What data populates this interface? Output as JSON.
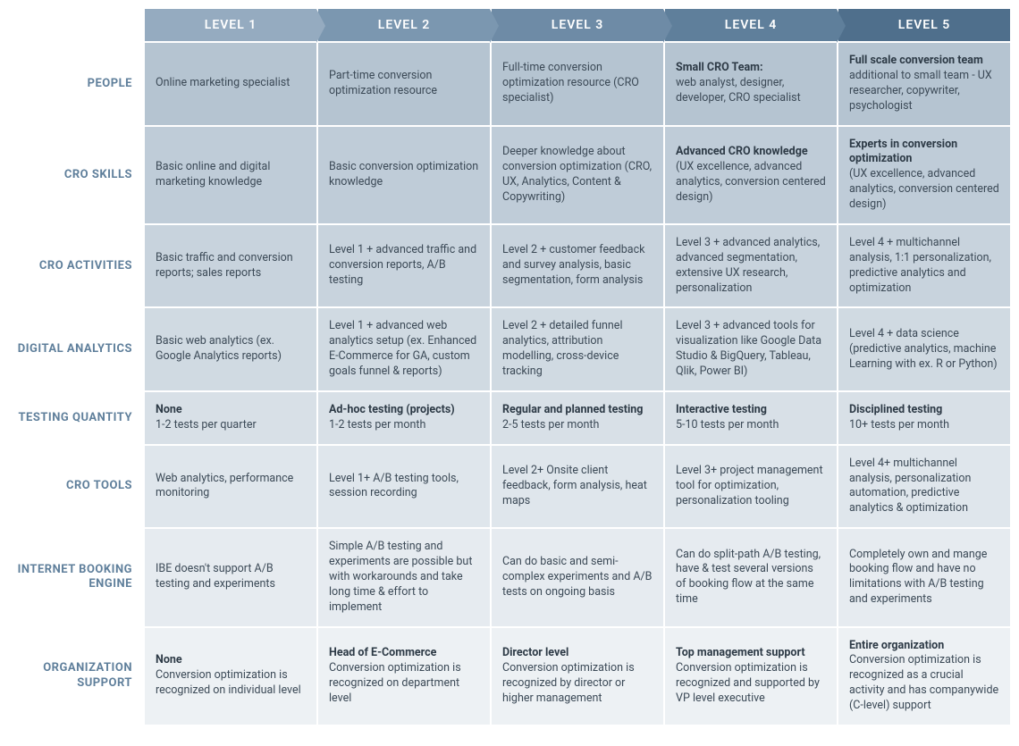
{
  "columns": [
    "LEVEL 1",
    "LEVEL 2",
    "LEVEL 3",
    "LEVEL 4",
    "LEVEL 5"
  ],
  "header_colors": [
    "#95abc0",
    "#7b97b0",
    "#6e8ba6",
    "#5f7f9b",
    "#4f6f8c"
  ],
  "row_bg_colors": [
    "#b5c4d1",
    "#bfccd8",
    "#c8d3dd",
    "#d0dae2",
    "#d8e0e7",
    "#dfe6ec",
    "#e6ebf0",
    "#edf1f4"
  ],
  "label_color": "#5f7f9b",
  "text_color": "#3c4a57",
  "bold_color": "#2d3a46",
  "font_size_header": 14,
  "font_size_label": 13,
  "font_size_cell": 12.5,
  "rows": [
    {
      "label": "PEOPLE",
      "cells": [
        {
          "bold": "",
          "text": "Online marketing specialist"
        },
        {
          "bold": "",
          "text": "Part-time conversion optimization resource"
        },
        {
          "bold": "",
          "text": "Full-time conversion optimization resource (CRO specialist)"
        },
        {
          "bold": "Small CRO Team:",
          "text": "web analyst, designer, developer, CRO specialist"
        },
        {
          "bold": "Full scale conversion team",
          "text": "additional to small team - UX researcher, copywriter, psychologist"
        }
      ]
    },
    {
      "label": "CRO SKILLS",
      "cells": [
        {
          "bold": "",
          "text": "Basic online and digital marketing knowledge"
        },
        {
          "bold": "",
          "text": "Basic conversion optimization knowledge"
        },
        {
          "bold": "",
          "text": "Deeper knowledge about conversion optimization (CRO, UX, Analytics, Content & Copywriting)"
        },
        {
          "bold": "Advanced CRO knowledge",
          "text": "(UX excellence, advanced analytics, conversion centered design)"
        },
        {
          "bold": "Experts in conversion optimization",
          "text": "(UX excellence, advanced analytics, conversion centered design)"
        }
      ]
    },
    {
      "label": "CRO ACTIVITIES",
      "cells": [
        {
          "bold": "",
          "text": "Basic traffic and conversion reports; sales reports"
        },
        {
          "bold": "",
          "text": "Level 1 + advanced traffic and conversion reports, A/B testing"
        },
        {
          "bold": "",
          "text": "Level 2 + customer feedback and survey analysis, basic segmentation, form analysis"
        },
        {
          "bold": "",
          "text": "Level 3 + advanced analytics, advanced segmentation, extensive UX research, personalization"
        },
        {
          "bold": "",
          "text": "Level 4 + multichannel analysis, 1:1 personalization, predictive analytics and optimization"
        }
      ]
    },
    {
      "label": "DIGITAL ANALYTICS",
      "cells": [
        {
          "bold": "",
          "text": "Basic web analytics (ex. Google Analytics reports)"
        },
        {
          "bold": "",
          "text": "Level 1 + advanced web analytics setup (ex. Enhanced E-Commerce for GA, custom goals funnel & reports)"
        },
        {
          "bold": "",
          "text": "Level 2 + detailed funnel analytics, attribution modelling, cross-device tracking"
        },
        {
          "bold": "",
          "text": "Level 3 + advanced tools for visualization like Google Data Studio & BigQuery, Tableau, Qlik, Power BI)"
        },
        {
          "bold": "",
          "text": "Level 4 + data science (predictive analytics, machine Learning with ex. R or Python)"
        }
      ]
    },
    {
      "label": "TESTING QUANTITY",
      "cells": [
        {
          "bold": "None",
          "text": "1-2 tests per quarter"
        },
        {
          "bold": "Ad-hoc testing (projects)",
          "text": "1-2 tests per month"
        },
        {
          "bold": "Regular and planned testing",
          "text": "2-5 tests per month"
        },
        {
          "bold": "Interactive testing",
          "text": "5-10 tests per month"
        },
        {
          "bold": "Disciplined testing",
          "text": "10+ tests per month"
        }
      ]
    },
    {
      "label": "CRO TOOLS",
      "cells": [
        {
          "bold": "",
          "text": "Web analytics, performance monitoring"
        },
        {
          "bold": "",
          "text": "Level 1+ A/B testing tools, session recording"
        },
        {
          "bold": "",
          "text": "Level 2+ Onsite client feedback, form analysis,  heat maps"
        },
        {
          "bold": "",
          "text": "Level 3+ project management tool for optimization, personalization tooling"
        },
        {
          "bold": "",
          "text": "Level 4+ multichannel analysis, personalization automation, predictive analytics & optimization"
        }
      ]
    },
    {
      "label": "INTERNET BOOKING ENGINE",
      "cells": [
        {
          "bold": "",
          "text": "IBE doesn't support A/B testing and experiments"
        },
        {
          "bold": "",
          "text": "Simple A/B testing and experiments are possible but with workarounds and take long time & effort to implement"
        },
        {
          "bold": "",
          "text": "Can do basic and semi-complex experiments and A/B tests on ongoing basis"
        },
        {
          "bold": "",
          "text": "Can do split-path A/B testing, have & test several versions of booking flow at the same time"
        },
        {
          "bold": "",
          "text": "Completely own and mange booking flow and have no limitations with A/B testing and experiments"
        }
      ]
    },
    {
      "label": "ORGANIZATION SUPPORT",
      "cells": [
        {
          "bold": "None",
          "text": "Conversion optimization is recognized on individual level"
        },
        {
          "bold": "Head of E-Commerce",
          "text": "Conversion optimization is recognized on department level"
        },
        {
          "bold": "Director level",
          "text": "Conversion optimization is recognized by director or higher management"
        },
        {
          "bold": "Top management support",
          "text": "Conversion optimization is recognized and supported by VP level executive"
        },
        {
          "bold": "Entire organization",
          "text": "Conversion optimization is recognized as a crucial activity and has companywide (C-level) support"
        }
      ]
    }
  ]
}
